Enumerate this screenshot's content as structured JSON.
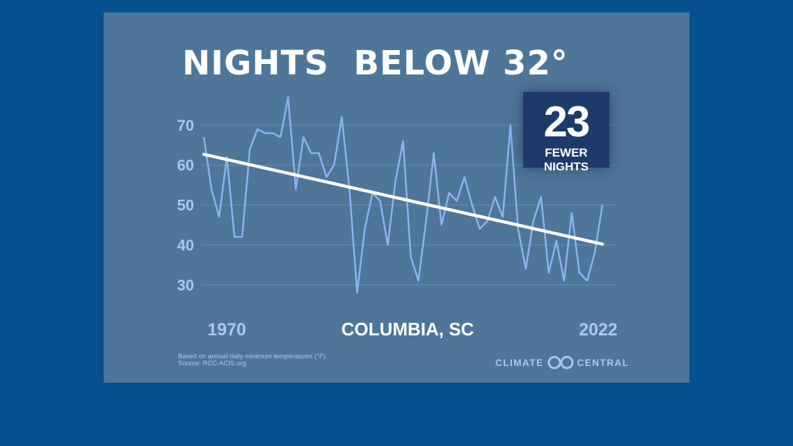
{
  "title": "NIGHTS  BELOW 32°",
  "callout": {
    "number": "23",
    "label": "FEWER NIGHTS"
  },
  "location": "COLUMBIA, SC",
  "notes": {
    "line1": "Based on annual daily minimum temperatures (°F).",
    "line2": "Source: RCC-ACIS.org"
  },
  "logo": {
    "left": "CLIMATE",
    "right": "CENTRAL"
  },
  "colors": {
    "page": "#06508f",
    "panel": "#4e7699",
    "series": "#8ab4ef",
    "trend": "#ffffff",
    "callout": "#1d3a6b"
  },
  "chart_data": {
    "type": "line",
    "xlabel": "",
    "ylabel": "",
    "xlim": [
      1970,
      2022
    ],
    "ylim": [
      25,
      78
    ],
    "yticks": [
      30,
      40,
      50,
      60,
      70
    ],
    "xtick_labels": [
      "1970",
      "2022"
    ],
    "grid": true,
    "x": [
      1970,
      1971,
      1972,
      1973,
      1974,
      1975,
      1976,
      1977,
      1978,
      1979,
      1980,
      1981,
      1982,
      1983,
      1984,
      1985,
      1986,
      1987,
      1988,
      1989,
      1990,
      1991,
      1992,
      1993,
      1994,
      1995,
      1996,
      1997,
      1998,
      1999,
      2000,
      2001,
      2002,
      2003,
      2004,
      2005,
      2006,
      2007,
      2008,
      2009,
      2010,
      2011,
      2012,
      2013,
      2014,
      2015,
      2016,
      2017,
      2018,
      2019,
      2020,
      2021,
      2022
    ],
    "series": [
      {
        "values": [
          67,
          54,
          47,
          62,
          42,
          42,
          64,
          69,
          68,
          68,
          67,
          77,
          54,
          67,
          63,
          63,
          57,
          60,
          72,
          54,
          28,
          44,
          53,
          51,
          40,
          56,
          66,
          37,
          31,
          46,
          63,
          45,
          53,
          51,
          57,
          50,
          44,
          46,
          52,
          47,
          70,
          44,
          34,
          46,
          52,
          33,
          41,
          31,
          48,
          33,
          31,
          38,
          50
        ]
      }
    ],
    "trend": {
      "start": [
        1970,
        62.7
      ],
      "end": [
        2022,
        40.2
      ]
    }
  }
}
